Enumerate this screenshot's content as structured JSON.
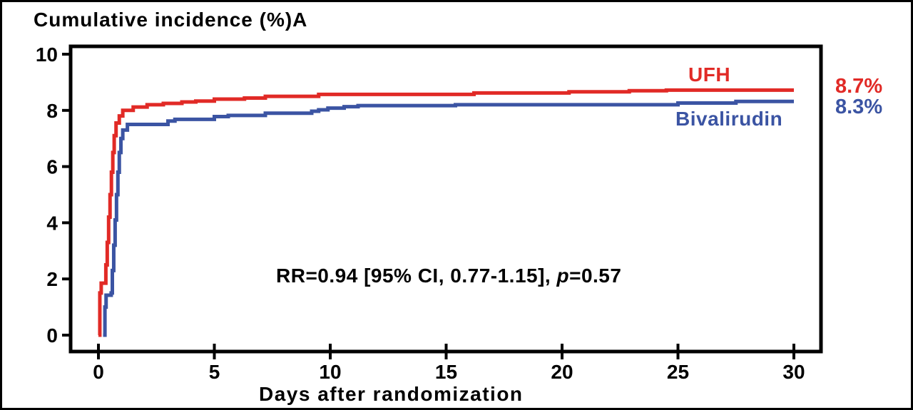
{
  "figure": {
    "title": "Cumulative incidence (%)A",
    "x_axis_title": "Days after randomization",
    "annotation": {
      "prefix": "RR=0.94 [95% CI, 0.77-1.15], ",
      "p_symbol": "p",
      "suffix": "=0.57"
    }
  },
  "colors": {
    "ufh_red": "#e12a26",
    "bivalirudin_blue": "#3b54a3",
    "axis_black": "#000000",
    "background": "#ffffff"
  },
  "chart_data": {
    "type": "line",
    "subtype": "step-after cumulative incidence curves (Kaplan-Meier style)",
    "title": "Cumulative incidence (%)A",
    "xlabel": "Days after randomization",
    "ylabel": "Cumulative incidence (%)",
    "xlim": [
      0,
      30
    ],
    "ylim": [
      0,
      10
    ],
    "x_ticks": [
      0,
      5,
      10,
      15,
      20,
      25,
      30
    ],
    "y_ticks": [
      0,
      2,
      4,
      6,
      8,
      10
    ],
    "grid": false,
    "legend_position": "inline labels near right ends of curves; final values printed outside plot box",
    "annotation": "RR=0.94 [95% CI, 0.77-1.15], p=0.57",
    "series": [
      {
        "name": "UFH",
        "color": "#e12a26",
        "end_label": "8.7%",
        "final_value": 8.7,
        "points": [
          [
            0,
            0
          ],
          [
            0.06,
            1.5
          ],
          [
            0.12,
            1.85
          ],
          [
            0.32,
            2.5
          ],
          [
            0.38,
            3.3
          ],
          [
            0.44,
            4.2
          ],
          [
            0.5,
            5.0
          ],
          [
            0.56,
            5.8
          ],
          [
            0.62,
            6.5
          ],
          [
            0.68,
            7.1
          ],
          [
            0.76,
            7.55
          ],
          [
            0.9,
            7.8
          ],
          [
            1.05,
            8.0
          ],
          [
            1.5,
            8.12
          ],
          [
            2.1,
            8.2
          ],
          [
            2.8,
            8.25
          ],
          [
            3.6,
            8.3
          ],
          [
            4.2,
            8.33
          ],
          [
            5.0,
            8.4
          ],
          [
            6.3,
            8.44
          ],
          [
            7.2,
            8.5
          ],
          [
            9.5,
            8.57
          ],
          [
            16.2,
            8.62
          ],
          [
            20.3,
            8.66
          ],
          [
            22.9,
            8.7
          ],
          [
            24.5,
            8.72
          ],
          [
            30,
            8.72
          ]
        ]
      },
      {
        "name": "Bivalirudin",
        "color": "#3b54a3",
        "end_label": "8.3%",
        "final_value": 8.3,
        "points": [
          [
            0.2,
            0
          ],
          [
            0.28,
            1.0
          ],
          [
            0.33,
            1.42
          ],
          [
            0.55,
            1.5
          ],
          [
            0.6,
            2.3
          ],
          [
            0.66,
            3.2
          ],
          [
            0.72,
            4.1
          ],
          [
            0.78,
            5.0
          ],
          [
            0.84,
            5.8
          ],
          [
            0.9,
            6.5
          ],
          [
            0.97,
            7.0
          ],
          [
            1.05,
            7.3
          ],
          [
            1.25,
            7.5
          ],
          [
            3.0,
            7.62
          ],
          [
            3.3,
            7.68
          ],
          [
            5.0,
            7.78
          ],
          [
            5.6,
            7.82
          ],
          [
            7.2,
            7.9
          ],
          [
            9.2,
            7.97
          ],
          [
            9.5,
            8.02
          ],
          [
            9.9,
            8.08
          ],
          [
            10.6,
            8.13
          ],
          [
            11.2,
            8.17
          ],
          [
            15.4,
            8.2
          ],
          [
            25.0,
            8.26
          ],
          [
            27.5,
            8.32
          ],
          [
            30,
            8.32
          ]
        ]
      }
    ]
  }
}
